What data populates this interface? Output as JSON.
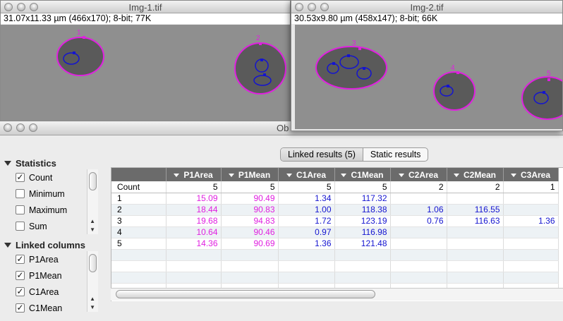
{
  "img1": {
    "title": "Img-1.tif",
    "info": "31.07x11.33 µm (466x170); 8-bit; 77K",
    "labels": [
      "1",
      "2"
    ]
  },
  "img2": {
    "title": "Img-2.tif",
    "info": "30.53x9.80 µm (458x147); 8-bit; 66K",
    "labels": [
      "3",
      "4",
      "5"
    ]
  },
  "results_window": {
    "title": "Ob"
  },
  "tabs": [
    {
      "label": "Linked results (5)",
      "active": true
    },
    {
      "label": "Static results",
      "active": false
    }
  ],
  "statistics": {
    "header": "Statistics",
    "items": [
      {
        "label": "Count",
        "checked": true
      },
      {
        "label": "Minimum",
        "checked": false
      },
      {
        "label": "Maximum",
        "checked": false
      },
      {
        "label": "Sum",
        "checked": false
      }
    ]
  },
  "linked_columns": {
    "header": "Linked columns",
    "items": [
      {
        "label": "P1Area",
        "checked": true
      },
      {
        "label": "P1Mean",
        "checked": true
      },
      {
        "label": "C1Area",
        "checked": true
      },
      {
        "label": "C1Mean",
        "checked": true
      }
    ]
  },
  "table": {
    "columns": [
      "",
      "P1Area",
      "P1Mean",
      "C1Area",
      "C1Mean",
      "C2Area",
      "C2Mean",
      "C3Area"
    ],
    "count_row": [
      "Count",
      "5",
      "5",
      "5",
      "5",
      "2",
      "2",
      "1"
    ],
    "rows": [
      [
        "1",
        "15.09",
        "90.49",
        "1.34",
        "117.32",
        "",
        "",
        ""
      ],
      [
        "2",
        "18.44",
        "90.83",
        "1.00",
        "118.38",
        "1.06",
        "116.55",
        ""
      ],
      [
        "3",
        "19.68",
        "94.83",
        "1.72",
        "123.19",
        "0.76",
        "116.63",
        "1.36"
      ],
      [
        "4",
        "10.64",
        "90.46",
        "0.97",
        "116.98",
        "",
        "",
        ""
      ],
      [
        "5",
        "14.36",
        "90.69",
        "1.36",
        "121.48",
        "",
        "",
        ""
      ]
    ],
    "empty_rows": 4
  },
  "colors": {
    "pink": "#e020e0",
    "blue": "#1414d0",
    "header_bg": "#6b6b6b"
  }
}
